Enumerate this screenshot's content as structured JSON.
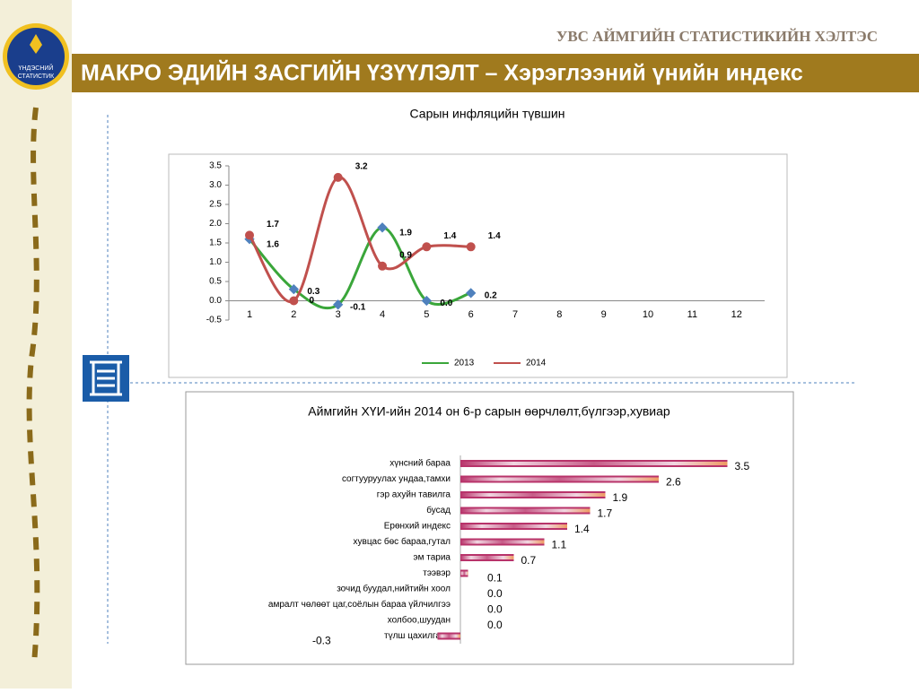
{
  "header": {
    "org": "УВС АЙМГИЙН СТАТИСТИКИЙН ХЭЛТЭС",
    "title": "МАКРО ЭДИЙН ЗАСГИЙН ҮЗҮҮЛЭЛТ – Хэрэглээний үнийн индекс",
    "logo_line1": "ҮНДЭСНИЙ",
    "logo_line2": "СТАТИСТИК"
  },
  "chart_data": [
    {
      "type": "line",
      "title": "Сарын инфляцийн түвшин",
      "categories": [
        "1",
        "2",
        "3",
        "4",
        "5",
        "6",
        "7",
        "8",
        "9",
        "10",
        "11",
        "12"
      ],
      "series": [
        {
          "name": "2013",
          "color": "#3aa63a",
          "marker_color": "#4f81bd",
          "values": [
            1.6,
            0.3,
            -0.1,
            1.9,
            0.0,
            0.2,
            null,
            null,
            null,
            null,
            null,
            null
          ],
          "value_labels": [
            "1.6",
            "0.3",
            "-0.1",
            "1.9",
            "0.0",
            "0.2",
            null,
            null,
            null,
            null,
            null,
            null
          ]
        },
        {
          "name": "2014",
          "color": "#c0504d",
          "values": [
            1.7,
            0,
            3.2,
            0.9,
            1.4,
            1.4,
            null,
            null,
            null,
            null,
            null,
            null
          ]
        }
      ],
      "ylim": [
        -0.5,
        3.5
      ],
      "yticks": [
        -0.5,
        {
          "value": 0,
          "label": "0.0"
        },
        0.5,
        {
          "value": 1,
          "label": "1.0"
        },
        1.5,
        {
          "value": 2,
          "label": "2.0"
        },
        2.5,
        {
          "value": 3,
          "label": "3.0"
        },
        3.5
      ],
      "legend": "bottom"
    },
    {
      "type": "hbar",
      "title": "Аймгийн ХҮИ-ийн 2014 он 6-р сарын өөрчлөлт,бүлгээр,хувиар",
      "categories": [
        "хүнсний бараа",
        "согтууруулах ундаа,тамхи",
        "гэр ахуйн тавилга",
        "бусад",
        "Ерөнхий индекс",
        "хувцас бөс бараа,гутал",
        "эм тариа",
        "тээвэр",
        "зочид буудал,нийтийн хоол",
        "амралт чөлөөт цаг,соёлын бараа үйлчилгээ",
        "холбоо,шуудан",
        "түлш цахилгаан"
      ],
      "values": [
        3.5,
        2.6,
        1.9,
        1.7,
        1.4,
        1.1,
        0.7,
        0.1,
        0.0,
        0.0,
        0.0,
        -0.3
      ],
      "value_labels": [
        "3.5",
        "2.6",
        "1.9",
        "1.7",
        "1.4",
        "1.1",
        "0.7",
        "0.1",
        "0.0",
        "0.0",
        "0.0",
        "-0.3"
      ],
      "color": "#b8336a"
    }
  ]
}
